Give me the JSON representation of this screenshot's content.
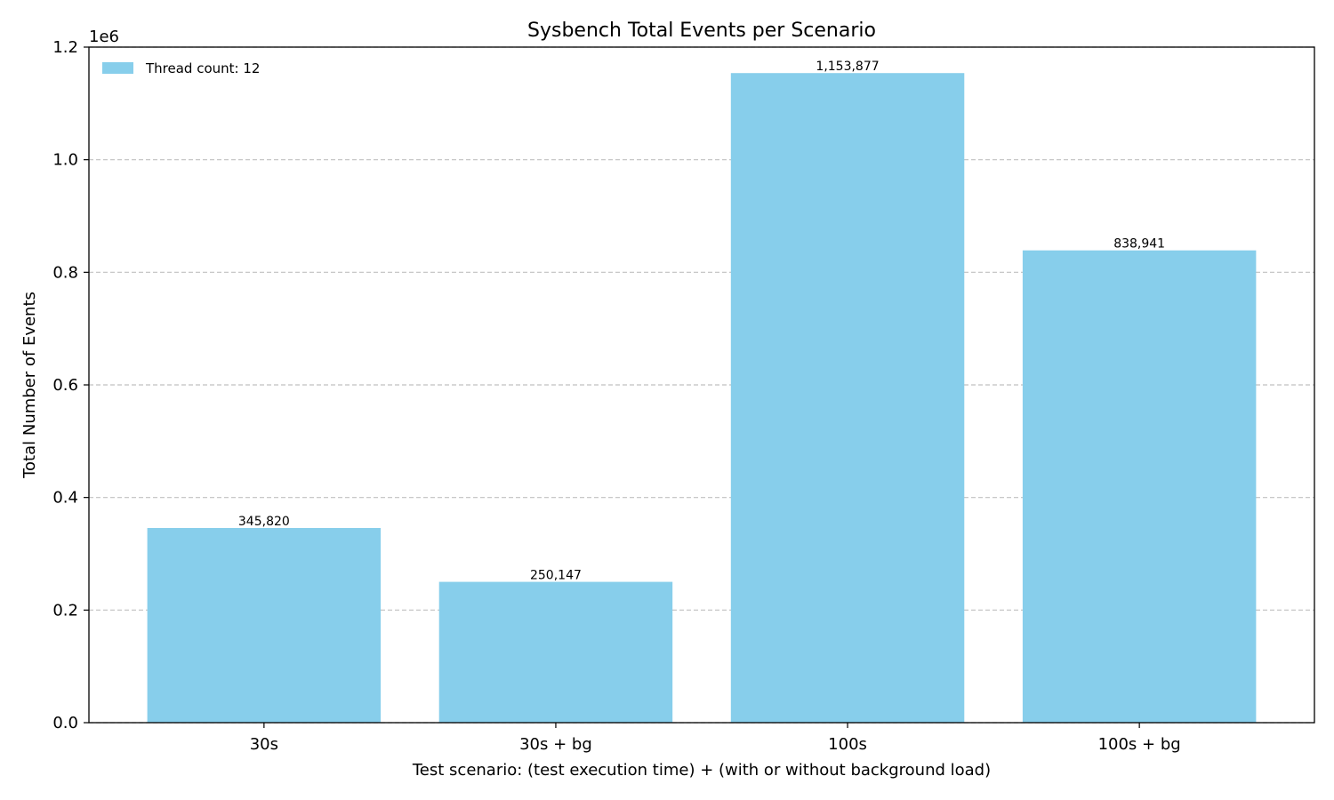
{
  "chart_data": {
    "type": "bar",
    "title": "Sysbench Total Events per Scenario",
    "xlabel": "Test scenario: (test execution time) + (with or without background load)",
    "ylabel": "Total Number of Events",
    "y_offset_label": "1e6",
    "y_scale": 1000000,
    "categories": [
      "30s",
      "30s + bg",
      "100s",
      "100s + bg"
    ],
    "series": [
      {
        "name": "Thread count: 12",
        "values": [
          345820,
          250147,
          1153877,
          838941
        ],
        "color": "#87ceeb"
      }
    ],
    "data_labels": [
      "345,820",
      "250,147",
      "1,153,877",
      "838,941"
    ],
    "ylim": [
      0,
      1200000
    ],
    "yticks": [
      0,
      200000,
      400000,
      600000,
      800000,
      1000000,
      1200000
    ],
    "ytick_labels": [
      "0.0",
      "0.2",
      "0.4",
      "0.6",
      "0.8",
      "1.0",
      "1.2"
    ],
    "grid": "y-dashed",
    "grid_color": "#c0c0c0",
    "legend": "top-left"
  }
}
